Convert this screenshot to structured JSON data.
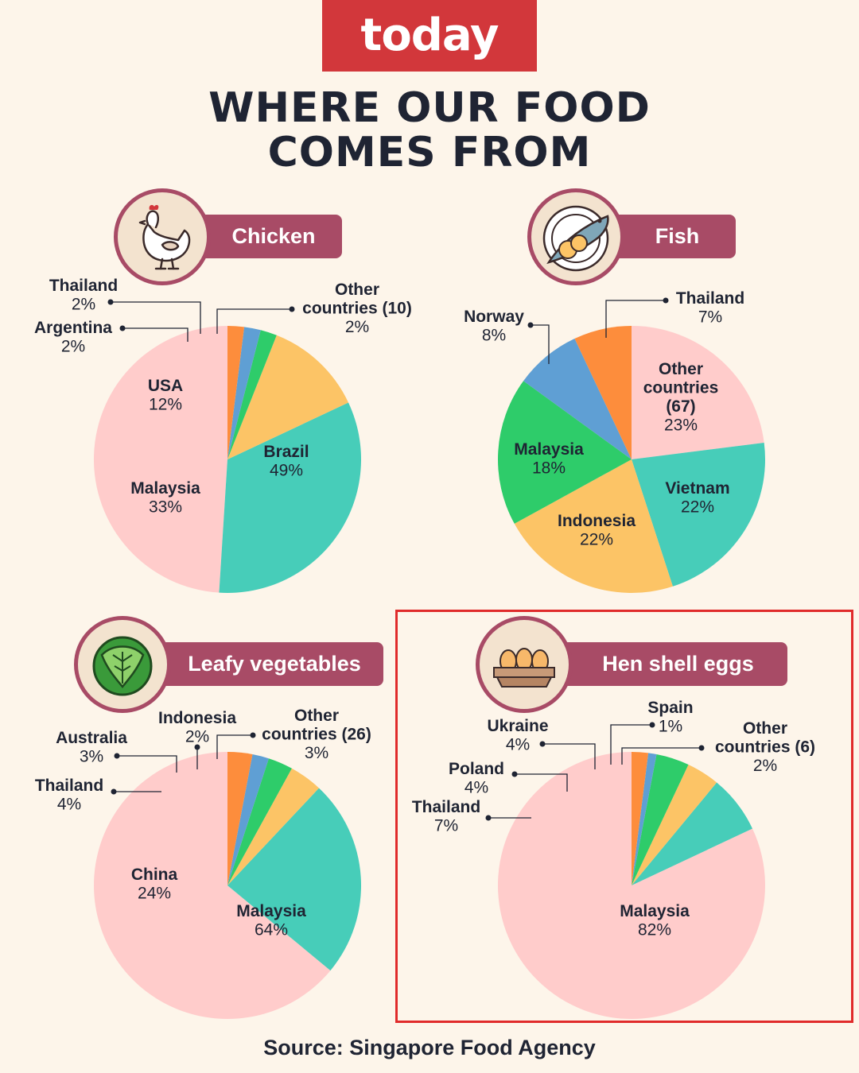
{
  "brand": {
    "logo_text": "today",
    "logo_color": "#d2373b"
  },
  "title": {
    "line1": "WHERE OUR FOOD",
    "line2": "COMES FROM"
  },
  "source": "Source: Singapore Food Agency",
  "colors": {
    "pill": "#a84b66",
    "background": "#fdf5ea",
    "highlight_frame": "#e02b2b"
  },
  "chart_data": [
    {
      "type": "pie",
      "title": "Chicken",
      "icon": "chicken-icon",
      "slices": [
        {
          "label": "Brazil",
          "value_label": "49%",
          "value": 49,
          "color": "#ffcccb"
        },
        {
          "label": "Malaysia",
          "value_label": "33%",
          "value": 33,
          "color": "#47cdb9"
        },
        {
          "label": "USA",
          "value_label": "12%",
          "value": 12,
          "color": "#fcc466"
        },
        {
          "label": "Argentina",
          "value_label": "2%",
          "value": 2,
          "color": "#2ecc6a"
        },
        {
          "label": "Thailand",
          "value_label": "2%",
          "value": 2,
          "color": "#5f9fd4"
        },
        {
          "label": "Other countries (10)",
          "value_label": "2%",
          "value": 2,
          "color": "#fd8d3c"
        }
      ]
    },
    {
      "type": "pie",
      "title": "Fish",
      "icon": "fish-icon",
      "slices": [
        {
          "label": "Other countries (67)",
          "value_label": "23%",
          "value": 23,
          "color": "#ffcccb"
        },
        {
          "label": "Vietnam",
          "value_label": "22%",
          "value": 22,
          "color": "#47cdb9"
        },
        {
          "label": "Indonesia",
          "value_label": "22%",
          "value": 22,
          "color": "#fcc466"
        },
        {
          "label": "Malaysia",
          "value_label": "18%",
          "value": 18,
          "color": "#2ecc6a"
        },
        {
          "label": "Norway",
          "value_label": "8%",
          "value": 8,
          "color": "#5f9fd4"
        },
        {
          "label": "Thailand",
          "value_label": "7%",
          "value": 7,
          "color": "#fd8d3c"
        }
      ]
    },
    {
      "type": "pie",
      "title": "Leafy vegetables",
      "icon": "cabbage-icon",
      "slices": [
        {
          "label": "Malaysia",
          "value_label": "64%",
          "value": 64,
          "color": "#ffcccb"
        },
        {
          "label": "China",
          "value_label": "24%",
          "value": 24,
          "color": "#47cdb9"
        },
        {
          "label": "Thailand",
          "value_label": "4%",
          "value": 4,
          "color": "#fcc466"
        },
        {
          "label": "Australia",
          "value_label": "3%",
          "value": 3,
          "color": "#2ecc6a"
        },
        {
          "label": "Indonesia",
          "value_label": "2%",
          "value": 2,
          "color": "#5f9fd4"
        },
        {
          "label": "Other countries (26)",
          "value_label": "3%",
          "value": 3,
          "color": "#fd8d3c"
        }
      ]
    },
    {
      "type": "pie",
      "title": "Hen shell eggs",
      "icon": "eggs-icon",
      "slices": [
        {
          "label": "Malaysia",
          "value_label": "82%",
          "value": 82,
          "color": "#ffcccb"
        },
        {
          "label": "Thailand",
          "value_label": "7%",
          "value": 7,
          "color": "#47cdb9"
        },
        {
          "label": "Poland",
          "value_label": "4%",
          "value": 4,
          "color": "#fcc466"
        },
        {
          "label": "Ukraine",
          "value_label": "4%",
          "value": 4,
          "color": "#2ecc6a"
        },
        {
          "label": "Spain",
          "value_label": "1%",
          "value": 1,
          "color": "#5f9fd4"
        },
        {
          "label": "Other countries (6)",
          "value_label": "2%",
          "value": 2,
          "color": "#fd8d3c"
        }
      ]
    }
  ]
}
